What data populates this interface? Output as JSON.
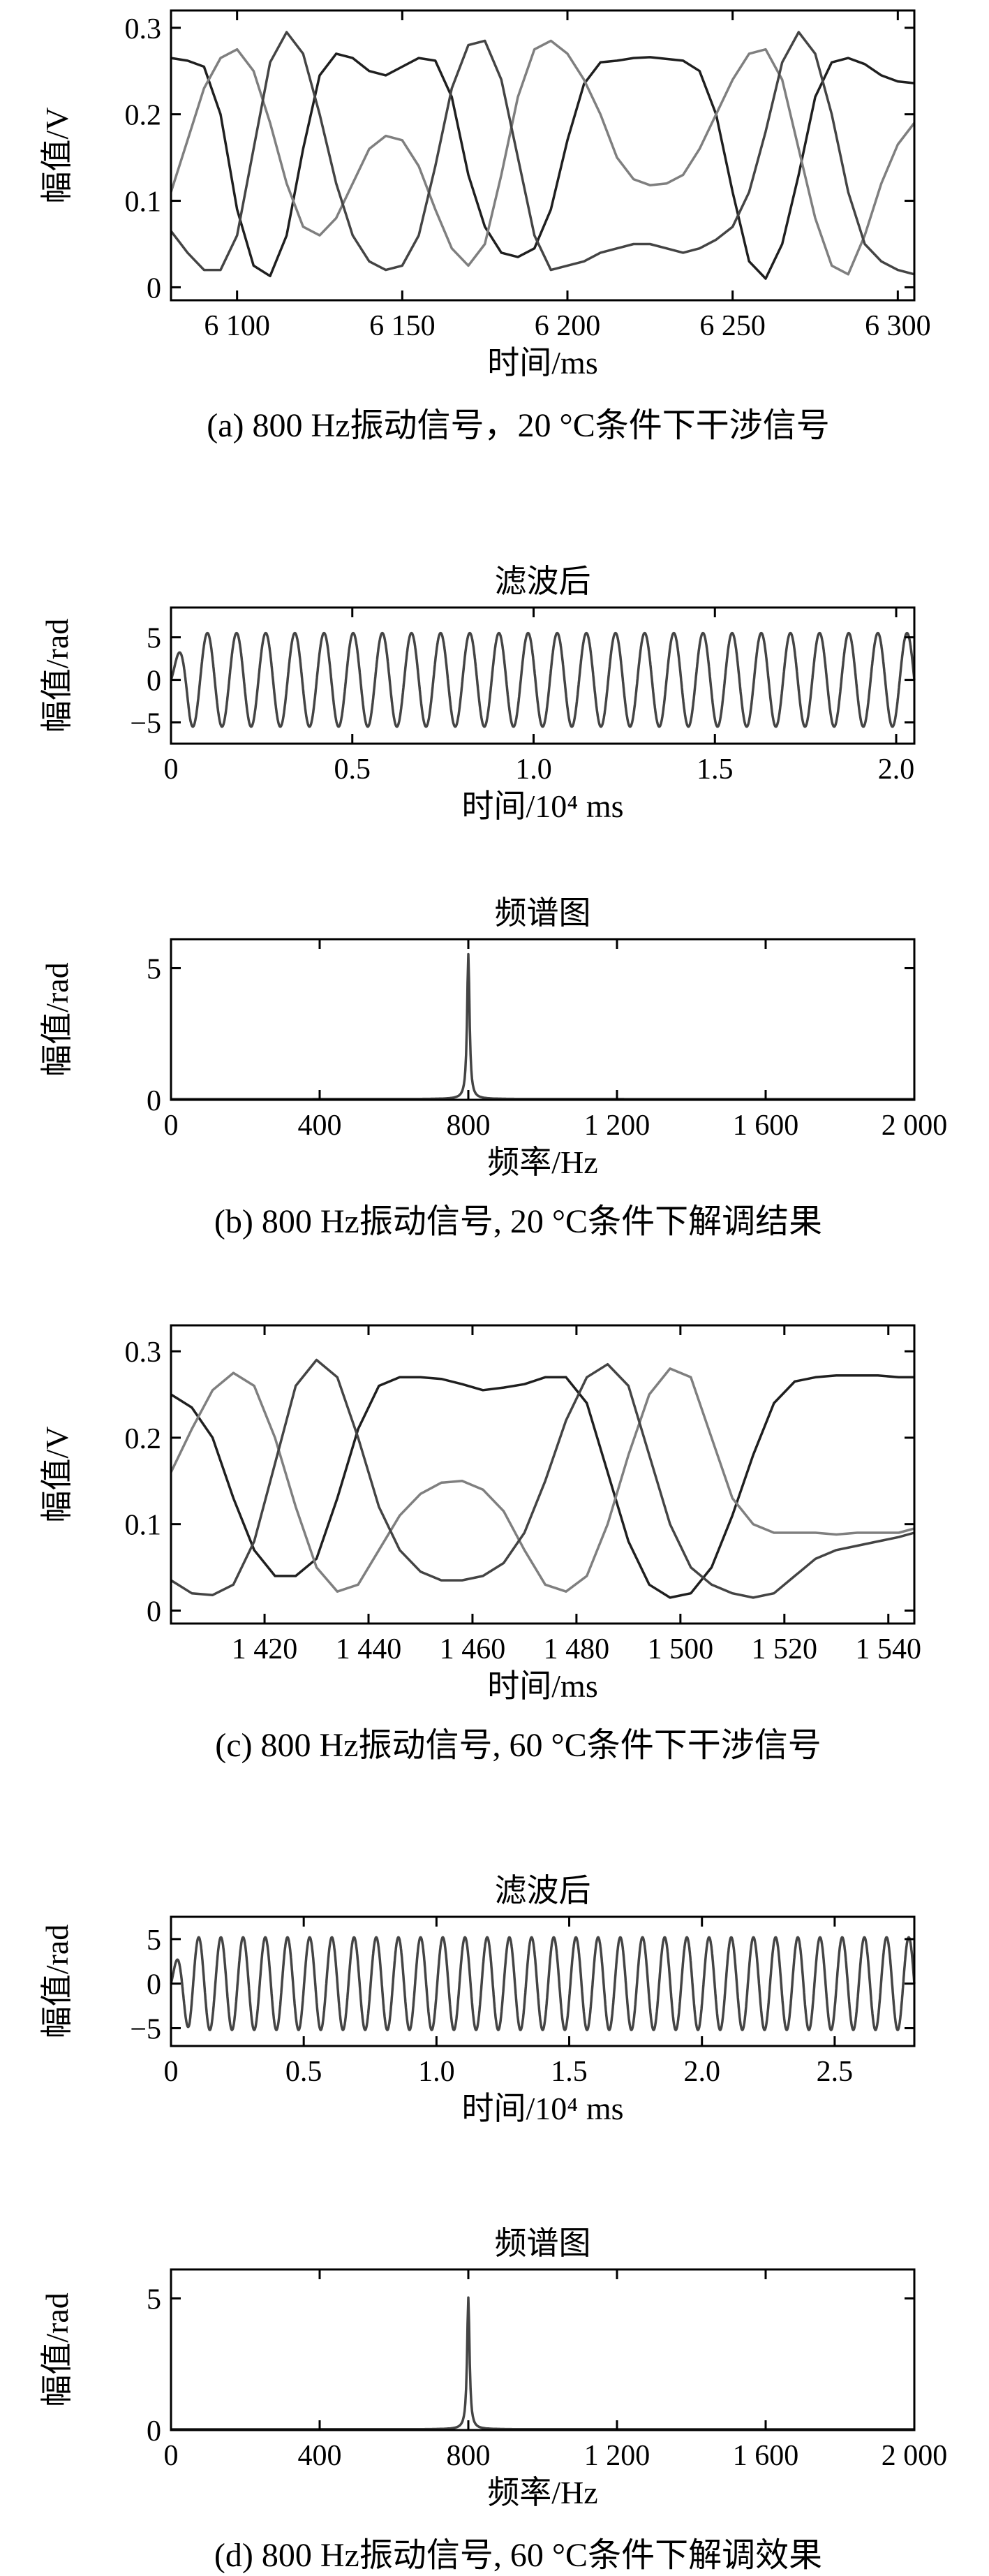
{
  "chart_data": [
    {
      "type": "line",
      "id": "a",
      "caption": "(a) 800 Hz振动信号，20 °C条件下干涉信号",
      "xlabel": "时间/ms",
      "ylabel": "幅值/V",
      "xlim": [
        6080,
        6305
      ],
      "ylim": [
        -0.015,
        0.32
      ],
      "xticks": [
        6100,
        6150,
        6200,
        6250,
        6300
      ],
      "xtick_labels": [
        "6 100",
        "6 150",
        "6 200",
        "6 250",
        "6 300"
      ],
      "yticks": [
        0,
        0.1,
        0.2,
        0.3
      ],
      "ytick_labels": [
        "0",
        "0.1",
        "0.2",
        "0.3"
      ],
      "colors": [
        "#1f1f1f",
        "#7f7f7f",
        "#444444"
      ],
      "series": [
        {
          "x": [
            6080,
            6085,
            6090,
            6095,
            6100,
            6105,
            6110,
            6115,
            6120,
            6125,
            6130,
            6135,
            6140,
            6145,
            6150,
            6155,
            6160,
            6165,
            6170,
            6175,
            6180,
            6185,
            6190,
            6195,
            6200,
            6205,
            6210,
            6215,
            6220,
            6225,
            6230,
            6235,
            6240,
            6245,
            6250,
            6255,
            6260,
            6265,
            6270,
            6275,
            6280,
            6285,
            6290,
            6295,
            6300,
            6305
          ],
          "y": [
            0.265,
            0.262,
            0.255,
            0.2,
            0.09,
            0.025,
            0.013,
            0.06,
            0.16,
            0.245,
            0.27,
            0.265,
            0.25,
            0.245,
            0.255,
            0.265,
            0.262,
            0.22,
            0.13,
            0.07,
            0.04,
            0.035,
            0.045,
            0.09,
            0.17,
            0.235,
            0.26,
            0.262,
            0.265,
            0.266,
            0.264,
            0.262,
            0.25,
            0.2,
            0.11,
            0.03,
            0.01,
            0.05,
            0.13,
            0.22,
            0.26,
            0.265,
            0.258,
            0.245,
            0.238,
            0.236
          ]
        },
        {
          "x": [
            6080,
            6085,
            6090,
            6095,
            6100,
            6105,
            6110,
            6115,
            6120,
            6125,
            6130,
            6135,
            6140,
            6145,
            6150,
            6155,
            6160,
            6165,
            6170,
            6175,
            6180,
            6185,
            6190,
            6195,
            6200,
            6205,
            6210,
            6215,
            6220,
            6225,
            6230,
            6235,
            6240,
            6245,
            6250,
            6255,
            6260,
            6265,
            6270,
            6275,
            6280,
            6285,
            6290,
            6295,
            6300,
            6305
          ],
          "y": [
            0.11,
            0.17,
            0.23,
            0.265,
            0.275,
            0.25,
            0.19,
            0.12,
            0.07,
            0.06,
            0.08,
            0.12,
            0.16,
            0.175,
            0.17,
            0.14,
            0.09,
            0.045,
            0.025,
            0.05,
            0.13,
            0.22,
            0.275,
            0.285,
            0.27,
            0.24,
            0.2,
            0.15,
            0.125,
            0.118,
            0.12,
            0.13,
            0.16,
            0.2,
            0.24,
            0.27,
            0.275,
            0.24,
            0.16,
            0.08,
            0.025,
            0.015,
            0.06,
            0.12,
            0.165,
            0.19
          ]
        },
        {
          "x": [
            6080,
            6085,
            6090,
            6095,
            6100,
            6105,
            6110,
            6115,
            6120,
            6125,
            6130,
            6135,
            6140,
            6145,
            6150,
            6155,
            6160,
            6165,
            6170,
            6175,
            6180,
            6185,
            6190,
            6195,
            6200,
            6205,
            6210,
            6215,
            6220,
            6225,
            6230,
            6235,
            6240,
            6245,
            6250,
            6255,
            6260,
            6265,
            6270,
            6275,
            6280,
            6285,
            6290,
            6295,
            6300,
            6305
          ],
          "y": [
            0.065,
            0.04,
            0.02,
            0.02,
            0.06,
            0.16,
            0.26,
            0.295,
            0.27,
            0.2,
            0.12,
            0.06,
            0.03,
            0.02,
            0.025,
            0.06,
            0.14,
            0.23,
            0.28,
            0.285,
            0.24,
            0.15,
            0.06,
            0.02,
            0.025,
            0.03,
            0.04,
            0.045,
            0.05,
            0.05,
            0.045,
            0.04,
            0.045,
            0.055,
            0.07,
            0.11,
            0.18,
            0.26,
            0.295,
            0.27,
            0.2,
            0.11,
            0.05,
            0.03,
            0.02,
            0.015
          ]
        }
      ]
    },
    {
      "type": "line",
      "id": "b1",
      "title": "滤波后",
      "xlabel": "时间/10⁴ ms",
      "ylabel": "幅值/rad",
      "xlim": [
        0,
        2.05
      ],
      "ylim": [
        -7.5,
        8.5
      ],
      "xticks": [
        0,
        0.5,
        1.0,
        1.5,
        2.0
      ],
      "xtick_labels": [
        "0",
        "0.5",
        "1.0",
        "1.5",
        "2.0"
      ],
      "yticks": [
        -5,
        0,
        5
      ],
      "ytick_labels": [
        "−5",
        "0",
        "5"
      ],
      "colors": [
        "#444444"
      ],
      "series": [
        {
          "waveform": "sine",
          "amplitude": 5.5,
          "cycles": 25.5,
          "start_amplitude": 1.5
        }
      ]
    },
    {
      "type": "line",
      "id": "b2",
      "title": "频谱图",
      "xlabel": "频率/Hz",
      "ylabel": "幅值/rad",
      "xlim": [
        0,
        2000
      ],
      "ylim": [
        0,
        6.1
      ],
      "xticks": [
        0,
        400,
        800,
        1200,
        1600,
        2000
      ],
      "xtick_labels": [
        "0",
        "400",
        "800",
        "1 200",
        "1 600",
        "2 000"
      ],
      "yticks": [
        0,
        5
      ],
      "ytick_labels": [
        "0",
        "5"
      ],
      "colors": [
        "#444444"
      ],
      "series": [
        {
          "peak_x": 800,
          "peak_y": 5.5
        }
      ],
      "caption": "(b) 800 Hz振动信号, 20 °C条件下解调结果"
    },
    {
      "type": "line",
      "id": "c",
      "caption": "(c) 800 Hz振动信号, 60 °C条件下干涉信号",
      "xlabel": "时间/ms",
      "ylabel": "幅值/V",
      "xlim": [
        1402,
        1545
      ],
      "ylim": [
        -0.015,
        0.33
      ],
      "xticks": [
        1420,
        1440,
        1460,
        1480,
        1500,
        1520,
        1540
      ],
      "xtick_labels": [
        "1 420",
        "1 440",
        "1 460",
        "1 480",
        "1 500",
        "1 520",
        "1 540"
      ],
      "yticks": [
        0,
        0.1,
        0.2,
        0.3
      ],
      "ytick_labels": [
        "0",
        "0.1",
        "0.2",
        "0.3"
      ],
      "colors": [
        "#1f1f1f",
        "#7f7f7f",
        "#444444"
      ],
      "series": [
        {
          "x": [
            1402,
            1406,
            1410,
            1414,
            1418,
            1422,
            1426,
            1430,
            1434,
            1438,
            1442,
            1446,
            1450,
            1454,
            1458,
            1462,
            1466,
            1470,
            1474,
            1478,
            1482,
            1486,
            1490,
            1494,
            1498,
            1502,
            1506,
            1510,
            1514,
            1518,
            1522,
            1526,
            1530,
            1534,
            1538,
            1542,
            1545
          ],
          "y": [
            0.25,
            0.235,
            0.2,
            0.13,
            0.07,
            0.04,
            0.04,
            0.06,
            0.13,
            0.21,
            0.26,
            0.27,
            0.27,
            0.268,
            0.262,
            0.255,
            0.258,
            0.262,
            0.27,
            0.27,
            0.24,
            0.16,
            0.08,
            0.03,
            0.015,
            0.02,
            0.05,
            0.11,
            0.18,
            0.24,
            0.265,
            0.27,
            0.272,
            0.272,
            0.272,
            0.27,
            0.27
          ]
        },
        {
          "x": [
            1402,
            1406,
            1410,
            1414,
            1418,
            1422,
            1426,
            1430,
            1434,
            1438,
            1442,
            1446,
            1450,
            1454,
            1458,
            1462,
            1466,
            1470,
            1474,
            1478,
            1482,
            1486,
            1490,
            1494,
            1498,
            1502,
            1506,
            1510,
            1514,
            1518,
            1522,
            1526,
            1530,
            1534,
            1538,
            1542,
            1545
          ],
          "y": [
            0.16,
            0.21,
            0.255,
            0.275,
            0.26,
            0.2,
            0.12,
            0.05,
            0.022,
            0.03,
            0.07,
            0.11,
            0.135,
            0.148,
            0.15,
            0.14,
            0.115,
            0.07,
            0.03,
            0.022,
            0.04,
            0.1,
            0.18,
            0.25,
            0.28,
            0.27,
            0.2,
            0.13,
            0.1,
            0.09,
            0.09,
            0.09,
            0.088,
            0.09,
            0.09,
            0.09,
            0.095
          ]
        },
        {
          "x": [
            1402,
            1406,
            1410,
            1414,
            1418,
            1422,
            1426,
            1430,
            1434,
            1438,
            1442,
            1446,
            1450,
            1454,
            1458,
            1462,
            1466,
            1470,
            1474,
            1478,
            1482,
            1486,
            1490,
            1494,
            1498,
            1502,
            1506,
            1510,
            1514,
            1518,
            1522,
            1526,
            1530,
            1534,
            1538,
            1542,
            1545
          ],
          "y": [
            0.035,
            0.02,
            0.018,
            0.03,
            0.08,
            0.17,
            0.26,
            0.29,
            0.27,
            0.2,
            0.12,
            0.07,
            0.045,
            0.035,
            0.035,
            0.04,
            0.055,
            0.09,
            0.15,
            0.22,
            0.27,
            0.285,
            0.26,
            0.18,
            0.1,
            0.05,
            0.03,
            0.02,
            0.015,
            0.02,
            0.04,
            0.06,
            0.07,
            0.075,
            0.08,
            0.085,
            0.09
          ]
        }
      ]
    },
    {
      "type": "line",
      "id": "d1",
      "title": "滤波后",
      "xlabel": "时间/10⁴ ms",
      "ylabel": "幅值/rad",
      "xlim": [
        0,
        2.8
      ],
      "ylim": [
        -7,
        7.5
      ],
      "xticks": [
        0,
        0.5,
        1.0,
        1.5,
        2.0,
        2.5
      ],
      "xtick_labels": [
        "0",
        "0.5",
        "1.0",
        "1.5",
        "2.0",
        "2.5"
      ],
      "yticks": [
        -5,
        0,
        5
      ],
      "ytick_labels": [
        "−5",
        "0",
        "5"
      ],
      "colors": [
        "#444444"
      ],
      "series": [
        {
          "waveform": "sine",
          "amplitude": 5.2,
          "cycles": 33.5,
          "start_amplitude": 1.5
        }
      ]
    },
    {
      "type": "line",
      "id": "d2",
      "title": "频谱图",
      "xlabel": "频率/Hz",
      "ylabel": "幅值/rad",
      "xlim": [
        0,
        2000
      ],
      "ylim": [
        0,
        6.1
      ],
      "xticks": [
        0,
        400,
        800,
        1200,
        1600,
        2000
      ],
      "xtick_labels": [
        "0",
        "400",
        "800",
        "1 200",
        "1 600",
        "2 000"
      ],
      "yticks": [
        0,
        5
      ],
      "ytick_labels": [
        "0",
        "5"
      ],
      "colors": [
        "#444444"
      ],
      "series": [
        {
          "peak_x": 800,
          "peak_y": 5.0
        }
      ],
      "caption": "(d) 800 Hz振动信号, 60 °C条件下解调效果"
    }
  ]
}
